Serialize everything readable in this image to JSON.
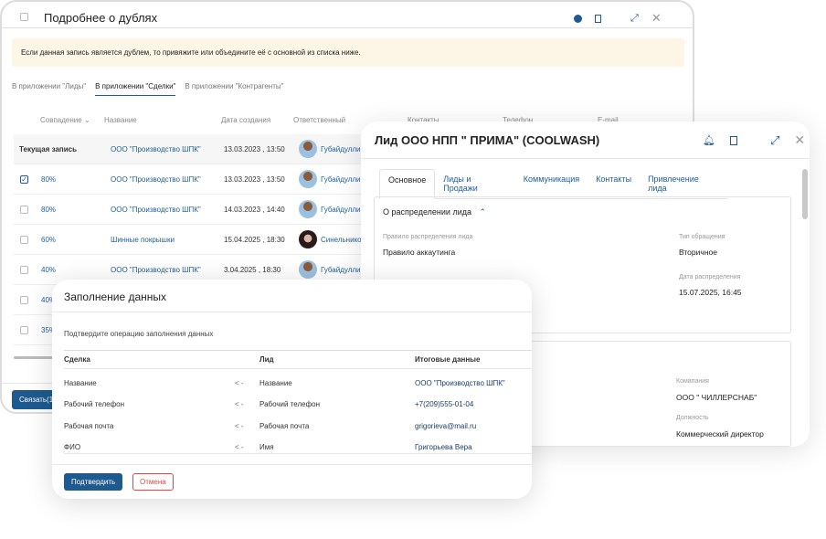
{
  "duplicates": {
    "title": "Подробнее о дублях",
    "banner": "Если данная запись является дублем, то привяжите или объедините её с основной из списка ниже.",
    "tabs": [
      {
        "label": "В приложении \"Лиды\""
      },
      {
        "label": "В приложении \"Сделки\"",
        "active": true
      },
      {
        "label": "В приложении \"Контрагенты\""
      }
    ],
    "columns": [
      "Совпадение",
      "Название",
      "Дата создания",
      "Ответственный",
      "Контакты",
      "Телефон",
      "E-mail"
    ],
    "rows": [
      {
        "match": "Текущая запись",
        "name": "ООО \"Производство ШПК\"",
        "date": "13.03.2023 , 13:50",
        "owner": "Губайдуллин",
        "checked": false,
        "current": true
      },
      {
        "match": "80%",
        "name": "ООО \"Производство ШПК\"",
        "date": "13.03.2023 , 13:50",
        "owner": "Губайдуллин",
        "checked": true
      },
      {
        "match": "80%",
        "name": "ООО \"Производство ШПК\"",
        "date": "14.03.2023 , 14:40",
        "owner": "Губайдуллин",
        "checked": false
      },
      {
        "match": "60%",
        "name": "Шинные покрышки",
        "date": "15.04.2025 , 18:30",
        "owner": "Синельников",
        "checked": false
      },
      {
        "match": "40%",
        "name": "ООО \"Производство ШПК\"",
        "date": "3.04.2025 , 18:30",
        "owner": "Губайдуллин",
        "checked": false
      },
      {
        "match": "40%",
        "checked": false
      },
      {
        "match": "35%",
        "checked": false
      }
    ],
    "link_button": "Связать(1)"
  },
  "lead": {
    "title": "Лид ООО НПП \" ПРИМА\" (COOLWASH)",
    "tabs": [
      {
        "label": "Основное",
        "active": true
      },
      {
        "label": "Лиды и Продажи"
      },
      {
        "label": "Коммуникация"
      },
      {
        "label": "Контакты"
      },
      {
        "label": "Привлечение лида"
      }
    ],
    "section_title": "О распределении лида",
    "fields": {
      "rule_label": "Правило распределения лида",
      "rule_value": "Правило аккаутинга",
      "type_label": "Тип обращения",
      "type_value": "Вторичное",
      "date_label": "Дата распределения",
      "date_value": "15.07.2025, 16:45",
      "company_label": "Комапания",
      "company_value": "ООО \" ЧИЛЛЕРСНАБ\"",
      "position_label": "Должность",
      "position_value": "Коммерческий директор"
    }
  },
  "fill": {
    "title": "Заполнение данных",
    "subtitle": "Подтвердите операцию заполнения данных",
    "headers": [
      "Сделка",
      "Лид",
      "Итоговые данные"
    ],
    "arrow": "< -",
    "rows": [
      {
        "deal": "Название",
        "lead": "Название",
        "result": "ООО \"Производство ШПК\""
      },
      {
        "deal": "Рабочий телефон",
        "lead": "Рабочий телефон",
        "result": "+7(209)555-01-04"
      },
      {
        "deal": "Рабочая почта",
        "lead": "Рабочая почта",
        "result": "grigorieva@mail.ru"
      },
      {
        "deal": "ФИО",
        "lead": "Имя",
        "result": "Григорьева Вера"
      }
    ],
    "confirm": "Подтвердить",
    "cancel": "Отмена"
  },
  "colors": {
    "accent": "#1e5a8f",
    "link": "#1f5f9a",
    "banner": "#fdf6e6",
    "cancel": "#e04848"
  }
}
